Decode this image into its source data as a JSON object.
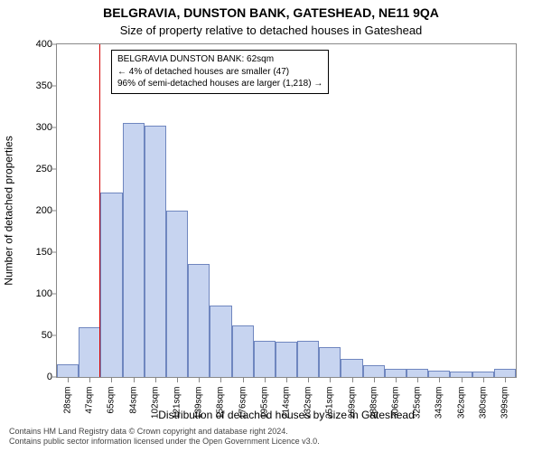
{
  "titles": {
    "line1": "BELGRAVIA, DUNSTON BANK, GATESHEAD, NE11 9QA",
    "line2": "Size of property relative to detached houses in Gateshead"
  },
  "axes": {
    "ylabel": "Number of detached properties",
    "xlabel": "Distribution of detached houses by size in Gateshead",
    "ylim": [
      0,
      400
    ],
    "ytick_step": 50,
    "yticks": [
      0,
      50,
      100,
      150,
      200,
      250,
      300,
      350,
      400
    ],
    "xticks": [
      "28sqm",
      "47sqm",
      "65sqm",
      "84sqm",
      "102sqm",
      "121sqm",
      "139sqm",
      "158sqm",
      "176sqm",
      "195sqm",
      "214sqm",
      "232sqm",
      "251sqm",
      "269sqm",
      "288sqm",
      "306sqm",
      "325sqm",
      "343sqm",
      "362sqm",
      "380sqm",
      "399sqm"
    ]
  },
  "chart": {
    "type": "histogram",
    "bar_fill": "#c7d4f0",
    "bar_stroke": "#6f86bf",
    "bar_width_ratio": 1.0,
    "background_color": "#ffffff",
    "border_color": "#888888",
    "data_x_min": 28,
    "data_x_max": 399,
    "ref_line_value": 62,
    "ref_line_color": "#d40000",
    "values": [
      15,
      60,
      222,
      305,
      302,
      200,
      136,
      86,
      62,
      44,
      42,
      44,
      36,
      22,
      14,
      10,
      10,
      8,
      6,
      6,
      10
    ]
  },
  "annotation": {
    "l1": "BELGRAVIA DUNSTON BANK: 62sqm",
    "l2": "← 4% of detached houses are smaller (47)",
    "l3": "96% of semi-detached houses are larger (1,218) →"
  },
  "footer": {
    "l1": "Contains HM Land Registry data © Crown copyright and database right 2024.",
    "l2": "Contains public sector information licensed under the Open Government Licence v3.0."
  },
  "style": {
    "title_fontsize": 14,
    "subtitle_fontsize": 13,
    "label_fontsize": 12,
    "tick_fontsize": 11,
    "xtick_fontsize": 10,
    "annot_fontsize": 10,
    "footer_fontsize": 9
  }
}
